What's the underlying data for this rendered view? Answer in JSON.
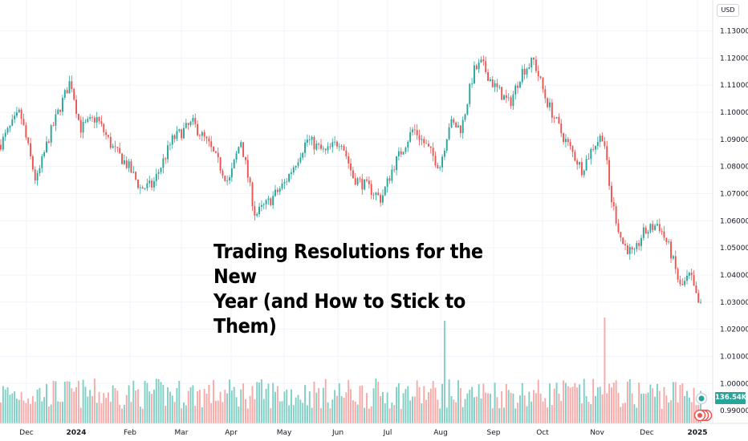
{
  "headline": {
    "line1": "Trading Resolutions for the New",
    "line2": "Year (and How to Stick to Them)"
  },
  "price_axis": {
    "currency": "USD",
    "ticks": [
      "1.13000",
      "1.12000",
      "1.11000",
      "1.10000",
      "1.09000",
      "1.08000",
      "1.07000",
      "1.06000",
      "1.05000",
      "1.04000",
      "1.03000",
      "1.02000",
      "1.01000",
      "1.00000",
      "0.99000"
    ]
  },
  "volume_badge": "136.54K",
  "time_axis": [
    "Dec",
    "2024",
    "Feb",
    "Mar",
    "Apr",
    "May",
    "Jun",
    "Jul",
    "Aug",
    "Sep",
    "Oct",
    "Nov",
    "Dec",
    "2025"
  ],
  "colors": {
    "up": "#26a69a",
    "down": "#ef5350",
    "vol_up": "#7fcfc5",
    "vol_down": "#f7a9a7",
    "grid": "#f0f3fa"
  },
  "icons": {
    "toggle1": "eye-toggle-icon",
    "toggle2": "settings-toggle-icon"
  },
  "chart_data": {
    "type": "candlestick",
    "x": [
      "2023-11",
      "2023-12",
      "2024-01",
      "2024-02",
      "2024-03",
      "2024-04",
      "2024-05",
      "2024-06",
      "2024-07",
      "2024-08",
      "2024-09",
      "2024-10",
      "2024-11",
      "2024-12",
      "2025-01"
    ],
    "close": [
      1.088,
      1.104,
      1.082,
      1.08,
      1.079,
      1.072,
      1.08,
      1.071,
      1.085,
      1.105,
      1.114,
      1.088,
      1.056,
      1.044,
      1.028
    ],
    "ylim": [
      0.985,
      1.135
    ],
    "volume_last": "136.54K",
    "grid": true
  }
}
